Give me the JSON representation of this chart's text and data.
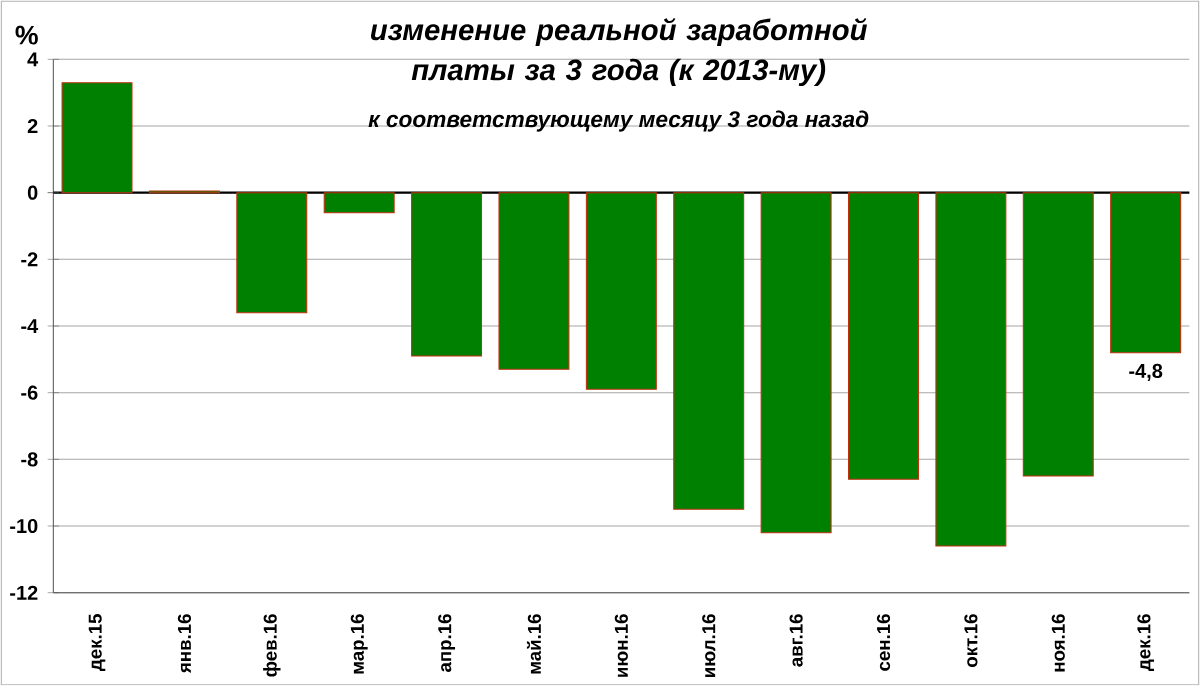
{
  "chart_data": {
    "type": "bar",
    "title": "изменение реальной заработной платы за 3 года (к 2013-му)",
    "subtitle": "к соответствующему месяцу 3 года назад",
    "ylabel": "%",
    "categories": [
      "дек.15",
      "янв.16",
      "фев.16",
      "мар.16",
      "апр.16",
      "май.16",
      "июн.16",
      "июл.16",
      "авг.16",
      "сен.16",
      "окт.16",
      "ноя.16",
      "дек.16"
    ],
    "values": [
      3.3,
      0.05,
      -3.6,
      -0.6,
      -4.9,
      -5.3,
      -5.9,
      -9.5,
      -10.2,
      -8.6,
      -10.6,
      -8.5,
      -4.8
    ],
    "value_labels": [
      null,
      null,
      null,
      null,
      null,
      null,
      null,
      null,
      null,
      null,
      null,
      null,
      "-4,8"
    ],
    "color": "#008000",
    "ylim": [
      -12,
      4
    ],
    "yticks": [
      -12,
      -10,
      -8,
      -6,
      -4,
      -2,
      0,
      2,
      4
    ],
    "grid": "y"
  }
}
